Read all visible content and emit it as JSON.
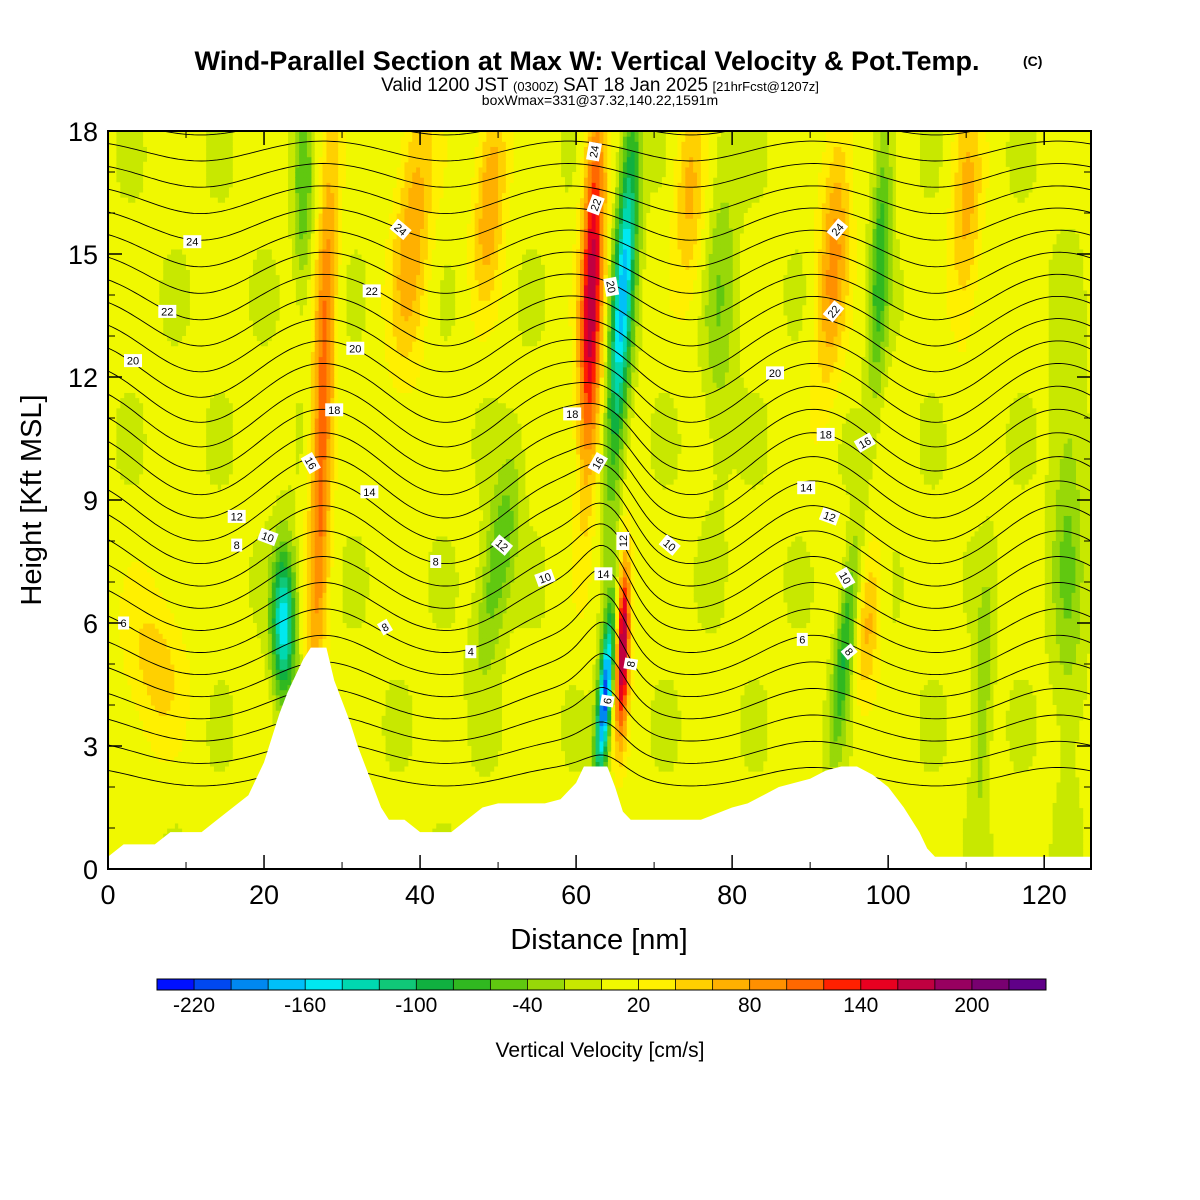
{
  "chart_data": {
    "type": "heatmap",
    "title": "Wind-Parallel Section at Max W: Vertical Velocity & Pot.Temp.",
    "title_mark": "(C)",
    "subtitle": {
      "prefix": "Valid 1200 JST",
      "utc": "(0300Z)",
      "date": "SAT 18 Jan 2025",
      "forecast": "[21hrFcst@1207z]"
    },
    "box_info": "boxWmax=331@37.32,140.22,1591m",
    "xlabel": "Distance [nm]",
    "ylabel": "Height [Kft MSL]",
    "xlim": [
      0,
      126
    ],
    "ylim": [
      0,
      18
    ],
    "x_ticks": [
      0,
      20,
      40,
      60,
      80,
      100,
      120
    ],
    "y_ticks": [
      0,
      3,
      6,
      9,
      12,
      15,
      18
    ],
    "colorbar": {
      "label": "Vertical Velocity [cm/s]",
      "tick_labels": [
        "-220",
        "-160",
        "-100",
        "-40",
        "20",
        "80",
        "140",
        "200"
      ],
      "levels": [
        -240,
        -220,
        -200,
        -180,
        -160,
        -140,
        -120,
        -100,
        -80,
        -60,
        -40,
        -20,
        0,
        20,
        40,
        60,
        80,
        100,
        120,
        140,
        160,
        180,
        200,
        220,
        240
      ],
      "colors": [
        "#0010ff",
        "#0048f0",
        "#0088f0",
        "#00c0f8",
        "#00e8f0",
        "#00d8b0",
        "#10c878",
        "#10b040",
        "#30b820",
        "#60c810",
        "#98d808",
        "#c8e800",
        "#f0f800",
        "#fff000",
        "#ffd000",
        "#ffb000",
        "#ff9000",
        "#ff6800",
        "#ff2000",
        "#e80020",
        "#c00040",
        "#980060",
        "#780070",
        "#600088"
      ]
    },
    "terrain": [
      [
        0,
        0.3
      ],
      [
        2,
        0.6
      ],
      [
        6,
        0.6
      ],
      [
        8,
        0.9
      ],
      [
        12,
        0.9
      ],
      [
        14,
        1.2
      ],
      [
        16,
        1.5
      ],
      [
        18,
        1.8
      ],
      [
        19,
        2.2
      ],
      [
        20,
        2.6
      ],
      [
        21,
        3.2
      ],
      [
        22,
        3.8
      ],
      [
        23,
        4.3
      ],
      [
        24,
        4.7
      ],
      [
        25,
        5.1
      ],
      [
        26,
        5.4
      ],
      [
        28,
        5.4
      ],
      [
        29,
        4.6
      ],
      [
        30,
        4.1
      ],
      [
        31,
        3.6
      ],
      [
        32,
        3.0
      ],
      [
        33,
        2.5
      ],
      [
        34,
        2.0
      ],
      [
        35,
        1.5
      ],
      [
        36,
        1.2
      ],
      [
        38,
        1.2
      ],
      [
        40,
        0.9
      ],
      [
        44,
        0.9
      ],
      [
        46,
        1.2
      ],
      [
        48,
        1.5
      ],
      [
        50,
        1.6
      ],
      [
        52,
        1.6
      ],
      [
        56,
        1.6
      ],
      [
        58,
        1.7
      ],
      [
        60,
        2.1
      ],
      [
        61,
        2.5
      ],
      [
        64,
        2.5
      ],
      [
        65,
        2.0
      ],
      [
        66,
        1.4
      ],
      [
        67,
        1.2
      ],
      [
        70,
        1.2
      ],
      [
        72,
        1.2
      ],
      [
        76,
        1.2
      ],
      [
        80,
        1.5
      ],
      [
        82,
        1.6
      ],
      [
        84,
        1.8
      ],
      [
        86,
        2.0
      ],
      [
        88,
        2.1
      ],
      [
        90,
        2.2
      ],
      [
        92,
        2.4
      ],
      [
        94,
        2.5
      ],
      [
        96,
        2.5
      ],
      [
        98,
        2.3
      ],
      [
        100,
        2.0
      ],
      [
        102,
        1.5
      ],
      [
        104,
        0.9
      ],
      [
        105,
        0.5
      ],
      [
        106,
        0.3
      ],
      [
        110,
        0.3
      ],
      [
        126,
        0.3
      ]
    ],
    "w_features": [
      {
        "x": 22.5,
        "z": 6.0,
        "w": -160,
        "sx": 1.5,
        "sz": 1.8,
        "tilt": 0.0
      },
      {
        "x": 27.5,
        "z": 11.0,
        "w": 110,
        "sx": 1.4,
        "sz": 7.0,
        "tilt": 0.15
      },
      {
        "x": 25.0,
        "z": 16.5,
        "w": -60,
        "sx": 1.2,
        "sz": 2.5,
        "tilt": 0.0
      },
      {
        "x": 39.0,
        "z": 15.5,
        "w": 70,
        "sx": 2.5,
        "sz": 3.5,
        "tilt": 0.3
      },
      {
        "x": 50.0,
        "z": 7.5,
        "w": -70,
        "sx": 2.0,
        "sz": 2.5,
        "tilt": 0.7
      },
      {
        "x": 49.0,
        "z": 16.5,
        "w": 80,
        "sx": 2.0,
        "sz": 2.5,
        "tilt": 0.3
      },
      {
        "x": 62.0,
        "z": 14.0,
        "w": 170,
        "sx": 1.5,
        "sz": 4.5,
        "tilt": 0.15
      },
      {
        "x": 66.0,
        "z": 14.0,
        "w": -170,
        "sx": 1.4,
        "sz": 4.5,
        "tilt": 0.3
      },
      {
        "x": 63.7,
        "z": 4.2,
        "w": -220,
        "sx": 0.9,
        "sz": 2.0,
        "tilt": 0.4
      },
      {
        "x": 66.0,
        "z": 5.5,
        "w": 190,
        "sx": 0.9,
        "sz": 2.2,
        "tilt": 0.15
      },
      {
        "x": 74.5,
        "z": 16.5,
        "w": 60,
        "sx": 2.0,
        "sz": 2.5,
        "tilt": 0.1
      },
      {
        "x": 78.5,
        "z": 14.0,
        "w": -40,
        "sx": 2.0,
        "sz": 4.0,
        "tilt": 0.1
      },
      {
        "x": 94.5,
        "z": 5.5,
        "w": -90,
        "sx": 1.2,
        "sz": 2.5,
        "tilt": 0.5
      },
      {
        "x": 97.5,
        "z": 6.0,
        "w": 60,
        "sx": 1.6,
        "sz": 2.0,
        "tilt": 0.4
      },
      {
        "x": 93.0,
        "z": 15.0,
        "w": 80,
        "sx": 2.0,
        "sz": 3.5,
        "tilt": 0.3
      },
      {
        "x": 99.0,
        "z": 15.0,
        "w": -80,
        "sx": 1.2,
        "sz": 3.5,
        "tilt": 0.2
      },
      {
        "x": 110.0,
        "z": 16.0,
        "w": 60,
        "sx": 2.0,
        "sz": 3.0,
        "tilt": 0.1
      },
      {
        "x": 112.0,
        "z": 4.0,
        "w": -45,
        "sx": 1.2,
        "sz": 3.0,
        "tilt": 0.2
      },
      {
        "x": 6.0,
        "z": 5.0,
        "w": 45,
        "sx": 4.0,
        "sz": 2.0,
        "tilt": 0.0
      },
      {
        "x": 123.0,
        "z": 8.0,
        "w": -45,
        "sx": 2.0,
        "sz": 5.0,
        "tilt": 0.0
      }
    ],
    "theta_contours": {
      "interval": 1,
      "labels": [
        {
          "x": 10.8,
          "z": 15.3,
          "text": "24",
          "rot": 0
        },
        {
          "x": 37.5,
          "z": 15.6,
          "text": "24",
          "rot": 40
        },
        {
          "x": 62.3,
          "z": 17.5,
          "text": "24",
          "rot": -80
        },
        {
          "x": 93.5,
          "z": 15.6,
          "text": "24",
          "rot": -50
        },
        {
          "x": 7.6,
          "z": 13.6,
          "text": "22",
          "rot": 0
        },
        {
          "x": 33.8,
          "z": 14.1,
          "text": "22",
          "rot": 0
        },
        {
          "x": 62.5,
          "z": 16.2,
          "text": "22",
          "rot": -70
        },
        {
          "x": 93.0,
          "z": 13.6,
          "text": "22",
          "rot": -50
        },
        {
          "x": 3.2,
          "z": 12.4,
          "text": "20",
          "rot": 0
        },
        {
          "x": 31.7,
          "z": 12.7,
          "text": "20",
          "rot": 0
        },
        {
          "x": 64.5,
          "z": 14.2,
          "text": "20",
          "rot": 80
        },
        {
          "x": 85.5,
          "z": 12.1,
          "text": "20",
          "rot": 0
        },
        {
          "x": 29.0,
          "z": 11.2,
          "text": "18",
          "rot": 0
        },
        {
          "x": 59.5,
          "z": 11.1,
          "text": "18",
          "rot": 0
        },
        {
          "x": 92.0,
          "z": 10.6,
          "text": "18",
          "rot": 0
        },
        {
          "x": 26.0,
          "z": 9.9,
          "text": "16",
          "rot": 60
        },
        {
          "x": 62.8,
          "z": 9.9,
          "text": "16",
          "rot": -60
        },
        {
          "x": 97.0,
          "z": 10.4,
          "text": "16",
          "rot": -30
        },
        {
          "x": 33.5,
          "z": 9.2,
          "text": "14",
          "rot": 0
        },
        {
          "x": 63.5,
          "z": 7.2,
          "text": "14",
          "rot": 0
        },
        {
          "x": 89.5,
          "z": 9.3,
          "text": "14",
          "rot": 0
        },
        {
          "x": 16.5,
          "z": 8.6,
          "text": "12",
          "rot": 0
        },
        {
          "x": 50.5,
          "z": 7.9,
          "text": "12",
          "rot": 40
        },
        {
          "x": 66.0,
          "z": 8.0,
          "text": "12",
          "rot": -90
        },
        {
          "x": 92.5,
          "z": 8.6,
          "text": "12",
          "rot": 20
        },
        {
          "x": 20.5,
          "z": 8.1,
          "text": "10",
          "rot": 20
        },
        {
          "x": 56.0,
          "z": 7.1,
          "text": "10",
          "rot": -20
        },
        {
          "x": 72.0,
          "z": 7.9,
          "text": "10",
          "rot": 40
        },
        {
          "x": 94.5,
          "z": 7.1,
          "text": "10",
          "rot": 60
        },
        {
          "x": 16.5,
          "z": 7.9,
          "text": "8",
          "rot": 0
        },
        {
          "x": 42.0,
          "z": 7.5,
          "text": "8",
          "rot": 0
        },
        {
          "x": 35.5,
          "z": 5.9,
          "text": "8",
          "rot": -30
        },
        {
          "x": 67.0,
          "z": 5.0,
          "text": "8",
          "rot": -80
        },
        {
          "x": 95.0,
          "z": 5.3,
          "text": "8",
          "rot": 50
        },
        {
          "x": 2.0,
          "z": 6.0,
          "text": "6",
          "rot": 0
        },
        {
          "x": 89.0,
          "z": 5.6,
          "text": "6",
          "rot": 0
        },
        {
          "x": 64.0,
          "z": 4.1,
          "text": "6",
          "rot": -80
        },
        {
          "x": 46.5,
          "z": 5.3,
          "text": "4",
          "rot": 0
        }
      ]
    }
  }
}
